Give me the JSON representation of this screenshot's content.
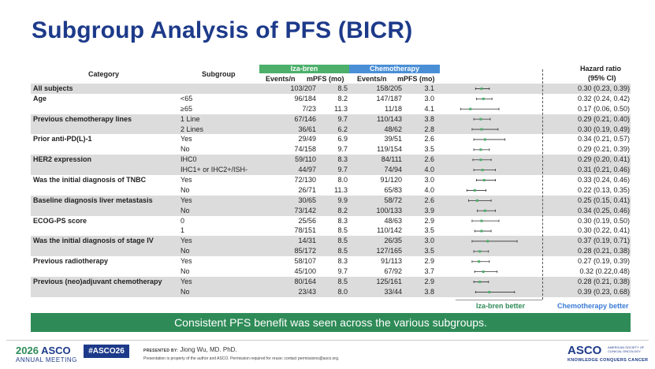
{
  "title": "Subgroup Analysis of PFS (BICR)",
  "columns": {
    "category": "Category",
    "subgroup": "Subgroup",
    "group_a": "Iza-bren",
    "group_b": "Chemotherapy",
    "events_a": "Events/n",
    "mpfs_a": "mPFS (mo)",
    "events_b": "Events/n",
    "mpfs_b": "mPFS (mo)",
    "hr_line1": "Hazard ratio",
    "hr_line2": "(95% CI)"
  },
  "rows": [
    {
      "category": "All subjects",
      "subgroup": "",
      "ev_a": "103/207",
      "mp_a": "8.5",
      "ev_b": "158/205",
      "mp_b": "3.1",
      "hr": "0.30 (0.23, 0.39)",
      "shade": true
    },
    {
      "category": "Age",
      "subgroup": "<65",
      "ev_a": "96/184",
      "mp_a": "8.2",
      "ev_b": "147/187",
      "mp_b": "3.0",
      "hr": "0.32 (0.24, 0.42)",
      "shade": false
    },
    {
      "category": "",
      "subgroup": "≥65",
      "ev_a": "7/23",
      "mp_a": "11.3",
      "ev_b": "11/18",
      "mp_b": "4.1",
      "hr": "0.17 (0.06, 0.50)",
      "shade": false
    },
    {
      "category": "Previous chemotherapy lines",
      "subgroup": "1 Line",
      "ev_a": "67/146",
      "mp_a": "9.7",
      "ev_b": "110/143",
      "mp_b": "3.8",
      "hr": "0.29 (0.21, 0.40)",
      "shade": true
    },
    {
      "category": "",
      "subgroup": "2 Lines",
      "ev_a": "36/61",
      "mp_a": "6.2",
      "ev_b": "48/62",
      "mp_b": "2.8",
      "hr": "0.30 (0.19, 0.49)",
      "shade": true
    },
    {
      "category": "Prior anti-PD(L)-1",
      "subgroup": "Yes",
      "ev_a": "29/49",
      "mp_a": "6.9",
      "ev_b": "39/51",
      "mp_b": "2.6",
      "hr": "0.34 (0.21, 0.57)",
      "shade": false
    },
    {
      "category": "",
      "subgroup": "No",
      "ev_a": "74/158",
      "mp_a": "9.7",
      "ev_b": "119/154",
      "mp_b": "3.5",
      "hr": "0.29 (0.21, 0.39)",
      "shade": false
    },
    {
      "category": "HER2 expression",
      "subgroup": "IHC0",
      "ev_a": "59/110",
      "mp_a": "8.3",
      "ev_b": "84/111",
      "mp_b": "2.6",
      "hr": "0.29 (0.20, 0.41)",
      "shade": true
    },
    {
      "category": "",
      "subgroup": "IHC1+ or IHC2+/ISH-",
      "ev_a": "44/97",
      "mp_a": "9.7",
      "ev_b": "74/94",
      "mp_b": "4.0",
      "hr": "0.31 (0.21, 0.46)",
      "shade": true
    },
    {
      "category": "Was the initial diagnosis of TNBC",
      "subgroup": "Yes",
      "ev_a": "72/130",
      "mp_a": "8.0",
      "ev_b": "91/120",
      "mp_b": "3.0",
      "hr": "0.33 (0.24, 0.46)",
      "shade": false
    },
    {
      "category": "",
      "subgroup": "No",
      "ev_a": "26/71",
      "mp_a": "11.3",
      "ev_b": "65/83",
      "mp_b": "4.0",
      "hr": "0.22 (0.13, 0.35)",
      "shade": false
    },
    {
      "category": "Baseline diagnosis liver metastasis",
      "subgroup": "Yes",
      "ev_a": "30/65",
      "mp_a": "9.9",
      "ev_b": "58/72",
      "mp_b": "2.6",
      "hr": "0.25 (0.15, 0.41)",
      "shade": true
    },
    {
      "category": "",
      "subgroup": "No",
      "ev_a": "73/142",
      "mp_a": "8.2",
      "ev_b": "100/133",
      "mp_b": "3.9",
      "hr": "0.34 (0.25, 0.46)",
      "shade": true
    },
    {
      "category": "ECOG-PS score",
      "subgroup": "0",
      "ev_a": "25/56",
      "mp_a": "8.3",
      "ev_b": "48/63",
      "mp_b": "2.9",
      "hr": "0.30 (0.19, 0.50)",
      "shade": false
    },
    {
      "category": "",
      "subgroup": "1",
      "ev_a": "78/151",
      "mp_a": "8.5",
      "ev_b": "110/142",
      "mp_b": "3.5",
      "hr": "0.30 (0.22, 0.41)",
      "shade": false
    },
    {
      "category": "Was the initial diagnosis of stage IV",
      "subgroup": "Yes",
      "ev_a": "14/31",
      "mp_a": "8.5",
      "ev_b": "26/35",
      "mp_b": "3.0",
      "hr": "0.37 (0.19, 0.71)",
      "shade": true
    },
    {
      "category": "",
      "subgroup": "No",
      "ev_a": "85/172",
      "mp_a": "8.5",
      "ev_b": "127/165",
      "mp_b": "3.5",
      "hr": "0.28 (0.21, 0.38)",
      "shade": true
    },
    {
      "category": "Previous radiotherapy",
      "subgroup": "Yes",
      "ev_a": "58/107",
      "mp_a": "8.3",
      "ev_b": "91/113",
      "mp_b": "2.9",
      "hr": "0.27 (0.19, 0.39)",
      "shade": false
    },
    {
      "category": "",
      "subgroup": "No",
      "ev_a": "45/100",
      "mp_a": "9.7",
      "ev_b": "67/92",
      "mp_b": "3.7",
      "hr": "0.32 (0.22,0.48)",
      "shade": false
    },
    {
      "category": "Previous (neo)adjuvant chemotherapy",
      "subgroup": "Yes",
      "ev_a": "80/164",
      "mp_a": "8.5",
      "ev_b": "125/161",
      "mp_b": "2.9",
      "hr": "0.28 (0.21, 0.38)",
      "shade": true
    },
    {
      "category": "",
      "subgroup": "No",
      "ev_a": "23/43",
      "mp_a": "8.0",
      "ev_b": "33/44",
      "mp_b": "3.8",
      "hr": "0.39 (0.23, 0.68)",
      "shade": true
    }
  ],
  "chart_data": {
    "type": "scatter",
    "xlim": [
      0,
      1.0
    ],
    "ticks": [
      "0.0",
      "0.1",
      "0.2",
      "0.3",
      "0.4",
      "0.5",
      "0.6",
      "0.7",
      "0.8",
      "0.9",
      "1.0"
    ],
    "reference_line": 1.0,
    "points": [
      {
        "hr": 0.3,
        "lo": 0.23,
        "hi": 0.39
      },
      {
        "hr": 0.32,
        "lo": 0.24,
        "hi": 0.42
      },
      {
        "hr": 0.17,
        "lo": 0.06,
        "hi": 0.5
      },
      {
        "hr": 0.29,
        "lo": 0.21,
        "hi": 0.4
      },
      {
        "hr": 0.3,
        "lo": 0.19,
        "hi": 0.49
      },
      {
        "hr": 0.34,
        "lo": 0.21,
        "hi": 0.57
      },
      {
        "hr": 0.29,
        "lo": 0.21,
        "hi": 0.39
      },
      {
        "hr": 0.29,
        "lo": 0.2,
        "hi": 0.41
      },
      {
        "hr": 0.31,
        "lo": 0.21,
        "hi": 0.46
      },
      {
        "hr": 0.33,
        "lo": 0.24,
        "hi": 0.46
      },
      {
        "hr": 0.22,
        "lo": 0.13,
        "hi": 0.35
      },
      {
        "hr": 0.25,
        "lo": 0.15,
        "hi": 0.41
      },
      {
        "hr": 0.34,
        "lo": 0.25,
        "hi": 0.46
      },
      {
        "hr": 0.3,
        "lo": 0.19,
        "hi": 0.5
      },
      {
        "hr": 0.3,
        "lo": 0.22,
        "hi": 0.41
      },
      {
        "hr": 0.37,
        "lo": 0.19,
        "hi": 0.71
      },
      {
        "hr": 0.28,
        "lo": 0.21,
        "hi": 0.38
      },
      {
        "hr": 0.27,
        "lo": 0.19,
        "hi": 0.39
      },
      {
        "hr": 0.32,
        "lo": 0.22,
        "hi": 0.48
      },
      {
        "hr": 0.28,
        "lo": 0.21,
        "hi": 0.38
      },
      {
        "hr": 0.39,
        "lo": 0.23,
        "hi": 0.68
      }
    ],
    "favor_left": "Iza-bren better",
    "favor_right": "Chemotherapy better",
    "colors": {
      "point": "#4caf6a",
      "ci": "#333333"
    }
  },
  "banner": "Consistent PFS benefit was seen across the various subgroups.",
  "footer": {
    "year": "2026",
    "brand": "ASCO",
    "meeting": "ANNUAL MEETING",
    "hashtag": "#ASCO26",
    "presented_by": "PRESENTED BY:",
    "presenter": "Jiong Wu, MD. PhD.",
    "disclaimer": "Presentation is property of the author and ASCO. Permission required for reuse; contact permissions@asco.org.",
    "logo": "ASCO",
    "society": "AMERICAN SOCIETY OF CLINICAL ONCOLOGY",
    "tagline": "KNOWLEDGE CONQUERS CANCER"
  },
  "colors": {
    "title": "#1d3a8a",
    "iza": "#4caf6a",
    "chemo": "#4a8fd6",
    "banner": "#2e8b57"
  }
}
